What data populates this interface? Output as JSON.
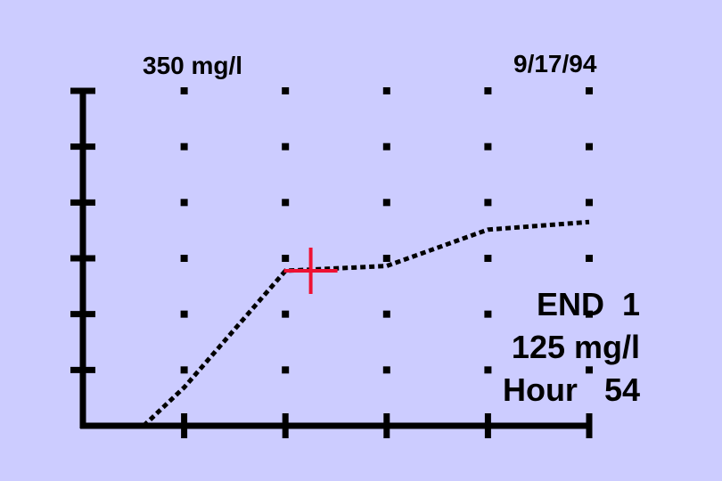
{
  "header": {
    "y_max_label": "350 mg/l",
    "date": "9/17/94"
  },
  "readout": {
    "line1": "END  1",
    "line2": "125 mg/l",
    "line3": "Hour   54"
  },
  "colors": {
    "background": "#ccccff",
    "axis": "#000000",
    "series": "#000000",
    "cursor": "#ee1133"
  },
  "chart_data": {
    "type": "line",
    "title": "",
    "xlabel": "",
    "ylabel": "",
    "xlim": [
      0,
      100
    ],
    "ylim": [
      0,
      350
    ],
    "x_ticks": 5,
    "y_ticks": 6,
    "grid": "dots",
    "series": [
      {
        "style": "dotted",
        "x": [
          12,
          20,
          40,
          60,
          80,
          100
        ],
        "y": [
          0,
          40,
          162,
          167,
          205,
          213
        ]
      }
    ],
    "cursor": {
      "x": 45,
      "y": 162,
      "style": "crosshair"
    }
  }
}
